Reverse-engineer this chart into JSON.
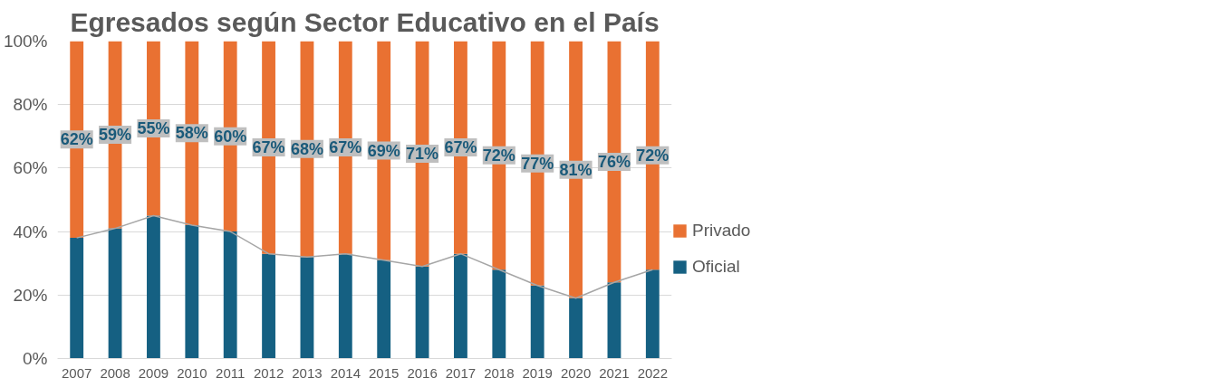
{
  "chart_data": {
    "type": "bar",
    "stacked": true,
    "title": "Egresados según Sector Educativo en el País",
    "categories": [
      "2007",
      "2008",
      "2009",
      "2010",
      "2011",
      "2012",
      "2013",
      "2014",
      "2015",
      "2016",
      "2017",
      "2018",
      "2019",
      "2020",
      "2021",
      "2022"
    ],
    "series": [
      {
        "name": "Oficial",
        "color": "#156082",
        "values": [
          38,
          41,
          45,
          42,
          40,
          33,
          32,
          33,
          31,
          29,
          33,
          28,
          23,
          19,
          24,
          28
        ]
      },
      {
        "name": "Privado",
        "color": "#e97132",
        "values": [
          62,
          59,
          55,
          58,
          60,
          67,
          68,
          67,
          69,
          71,
          67,
          72,
          77,
          81,
          76,
          72
        ],
        "value_labels": [
          "62%",
          "59%",
          "55%",
          "58%",
          "60%",
          "67%",
          "68%",
          "67%",
          "69%",
          "71%",
          "67%",
          "72%",
          "77%",
          "81%",
          "76%",
          "72%"
        ]
      },
      {
        "type": "line",
        "color": "#a6a6a6",
        "values": [
          38,
          41,
          45,
          42,
          40,
          33,
          32,
          33,
          31,
          29,
          33,
          28,
          23,
          19,
          24,
          28
        ]
      }
    ],
    "ylim": [
      0,
      100
    ],
    "yticks": [
      {
        "value": 0,
        "label": "0%"
      },
      {
        "value": 20,
        "label": "20%"
      },
      {
        "value": 40,
        "label": "40%"
      },
      {
        "value": 60,
        "label": "60%"
      },
      {
        "value": 80,
        "label": "80%"
      },
      {
        "value": 100,
        "label": "100%"
      }
    ],
    "grid": "y",
    "legend": "right"
  }
}
